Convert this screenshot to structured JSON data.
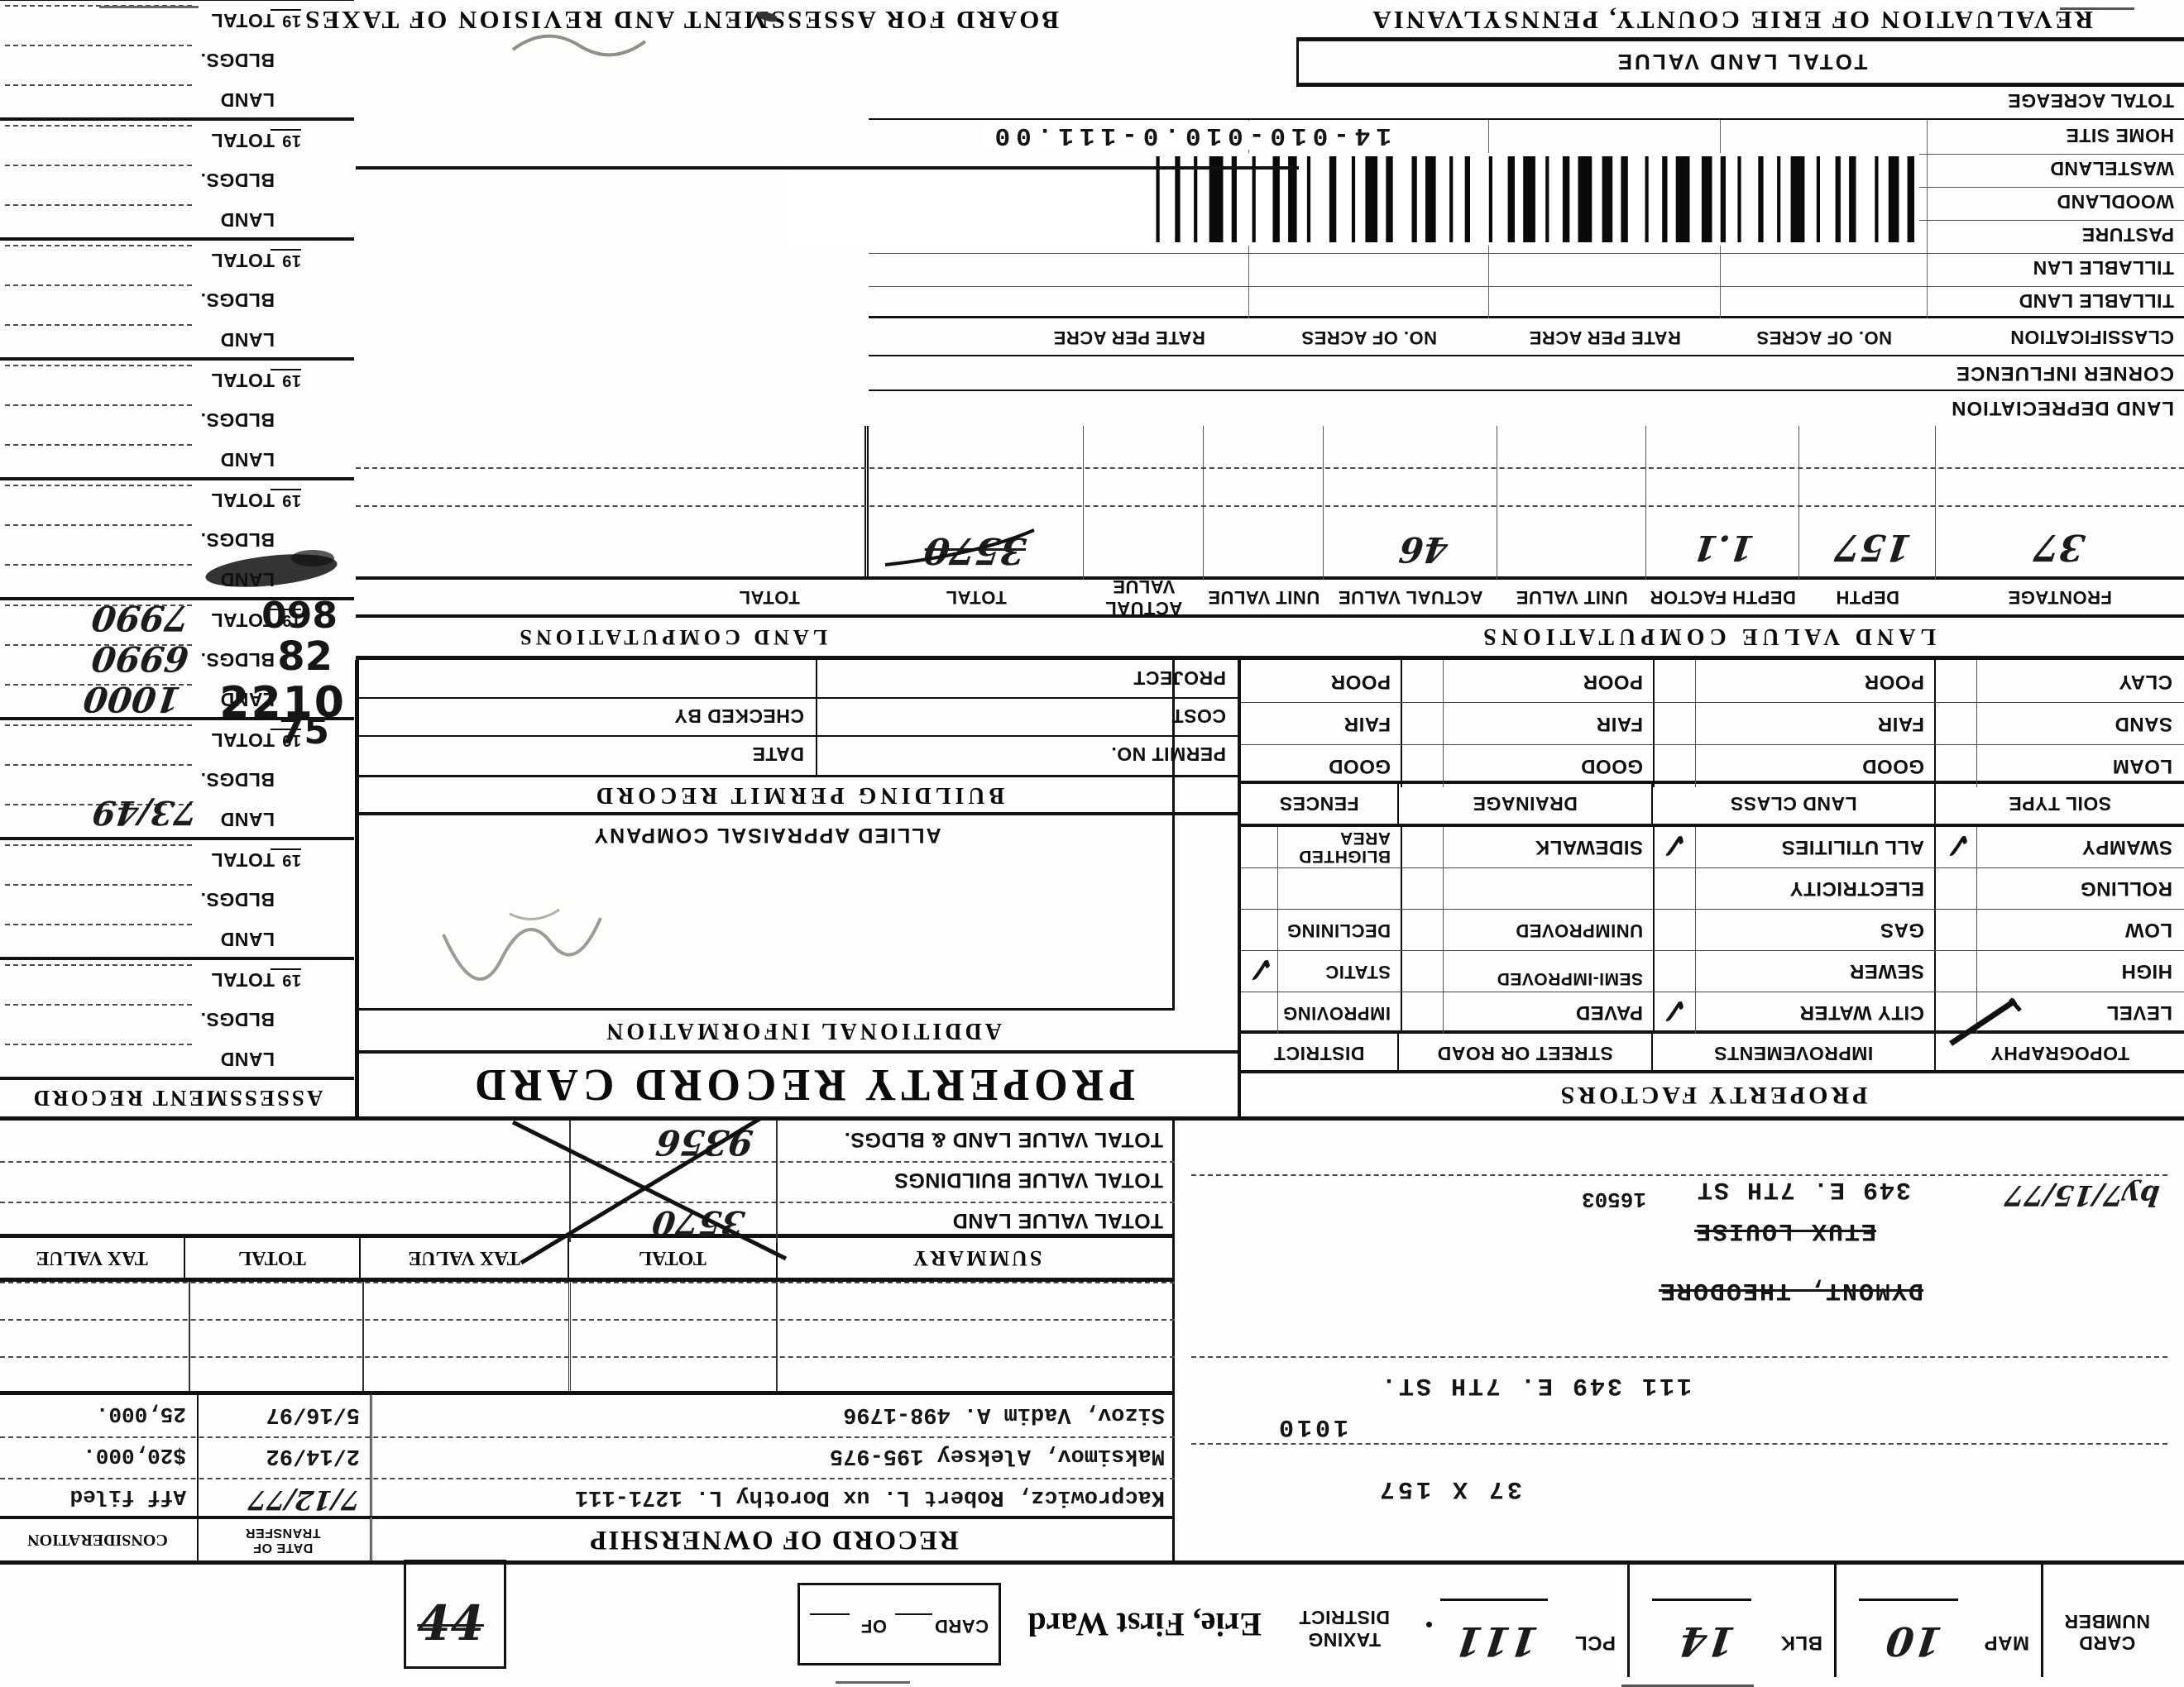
{
  "glyphs": {
    "check": "✓",
    "dot": "."
  },
  "titles": {
    "revaluation": "REVALUATION OF ERIE COUNTY, PENNSYLVANIA",
    "board": "BOARD FOR ASSESSMENT AND REVISION OF TAXES",
    "card_title": "PROPERTY RECORD CARD"
  },
  "header": {
    "card_number_line1": "CARD",
    "card_number_line2": "NUMBER",
    "map_label": "MAP",
    "map_value": "10",
    "blk_label": "BLK",
    "blk_value": "14",
    "pcl_label": "PCL",
    "pcl_value": "111",
    "card_of_card": "CARD",
    "card_of_of": "OF",
    "taxing_line1": "TAXING",
    "taxing_line2": "DISTRICT",
    "taxing_value": "Erie, First Ward",
    "inverted_note": "44"
  },
  "location": {
    "dimensions": "37 X 157",
    "block_number": "1010",
    "parcel_line": "111   349 E. 7TH ST.",
    "crossed_name1": "DYMONT, THEODORE",
    "crossed_name2": "ETUX LOUISE",
    "address_line": "349 E. 7TH ST",
    "zip": "16503",
    "hand_note": "by7/15/77"
  },
  "ownership": {
    "header": "RECORD OF OWNERSHIP",
    "date_label_1": "DATE OF",
    "date_label_2": "TRANSFER",
    "consideration_label": "CONSIDERATION",
    "rows": [
      {
        "name": "Kacprowicz, Robert L. ux Dorothy L. 1271-111",
        "date": "7/12/77",
        "consideration": "Aff filed"
      },
      {
        "name": "Maksimov, Aleksey        195-975",
        "date": "2/14/92",
        "consideration": "$20,000."
      },
      {
        "name": "Sizov, Vadim A.          498-1796",
        "date": "5/16/97",
        "consideration": "25,000."
      }
    ]
  },
  "summary": {
    "header": [
      "SUMMARY",
      "TOTAL",
      "TAX VALUE",
      "TOTAL",
      "TAX VALUE"
    ],
    "rows": [
      {
        "label": "TOTAL VALUE LAND",
        "total": "3570"
      },
      {
        "label": "TOTAL VALUE BUILDINGS",
        "total": ""
      },
      {
        "label": "TOTAL VALUE LAND & BLDGS.",
        "total": "9356"
      }
    ]
  },
  "property_factors": {
    "header": "PROPERTY FACTORS",
    "columns": [
      "TOPOGRAPHY",
      "IMPROVEMENTS",
      "STREET OR ROAD",
      "DISTRICT"
    ],
    "rows": [
      [
        "LEVEL",
        "CITY WATER",
        "PAVED",
        "IMPROVING"
      ],
      [
        "HIGH",
        "SEWER",
        "SEMI-IMPROVED",
        "STATIC"
      ],
      [
        "LOW",
        "GAS",
        "UNIMPROVED",
        "DECLINING"
      ],
      [
        "ROLLING",
        "ELECTRICITY",
        "",
        ""
      ],
      [
        "SWAMPY",
        "ALL UTILITIES",
        "SIDEWALK",
        "BLIGHTED AREA"
      ]
    ],
    "soil_columns": [
      "SOIL TYPE",
      "LAND CLASS",
      "DRAINAGE",
      "FENCES"
    ],
    "soil_rows": [
      [
        "LOAM",
        "GOOD",
        "GOOD",
        "GOOD"
      ],
      [
        "SAND",
        "FAIR",
        "FAIR",
        "FAIR"
      ],
      [
        "CLAY",
        "POOR",
        "POOR",
        "POOR"
      ]
    ]
  },
  "land_value_computations": {
    "header_left": "LAND VALUE COMPUTATIONS",
    "header_right": "LAND COMPUTATIONS",
    "columns": [
      "FRONTAGE",
      "DEPTH",
      "DEPTH FACTOR",
      "UNIT VALUE",
      "ACTUAL VALUE",
      "UNIT VALUE",
      "ACTUAL VALUE",
      "TOTAL",
      "TOTAL"
    ],
    "hand_row": {
      "frontage": "37",
      "depth": "157",
      "depth_factor": "1.1",
      "actual_value": "46",
      "total": "3570"
    }
  },
  "land_section": {
    "land_depreciation": "LAND DEPRECIATION",
    "corner_influence": "CORNER INFLUENCE",
    "classification_columns": [
      "CLASSIFICATION",
      "NO. OF ACRES",
      "RATE PER ACRE",
      "NO. OF ACRES",
      "RATE PER ACRE"
    ],
    "rows": [
      "TILLABLE LAND",
      "TILLABLE LAN",
      "PASTURE",
      "WOODLAND",
      "WASTELAND",
      "HOME SITE",
      "TOTAL ACREAGE"
    ],
    "total_land_value": "TOTAL LAND VALUE",
    "parcel_id": "14-010-010.0-111.00"
  },
  "additional": {
    "header": "ADDITIONAL INFORMATION",
    "company": "ALLIED APPRAISAL COMPANY"
  },
  "building_permit": {
    "header": "BUILDING PERMIT RECORD",
    "permit_no": "PERMIT NO.",
    "date": "DATE",
    "cost": "COST",
    "checked_by": "CHECKED BY",
    "project": "PROJECT"
  },
  "assessment": {
    "header": "ASSESSMENT RECORD",
    "year_prefix": "19",
    "row_labels": [
      "LAND",
      "BLDGS.",
      "TOTAL"
    ],
    "values": {
      "land": "1000",
      "bldgs": "6990",
      "total": "7990"
    },
    "stamps": {
      "year_note": "73/49",
      "stamp75": "75",
      "stamp2210": "2210",
      "stamp82": "82",
      "stamp098": "098"
    }
  }
}
